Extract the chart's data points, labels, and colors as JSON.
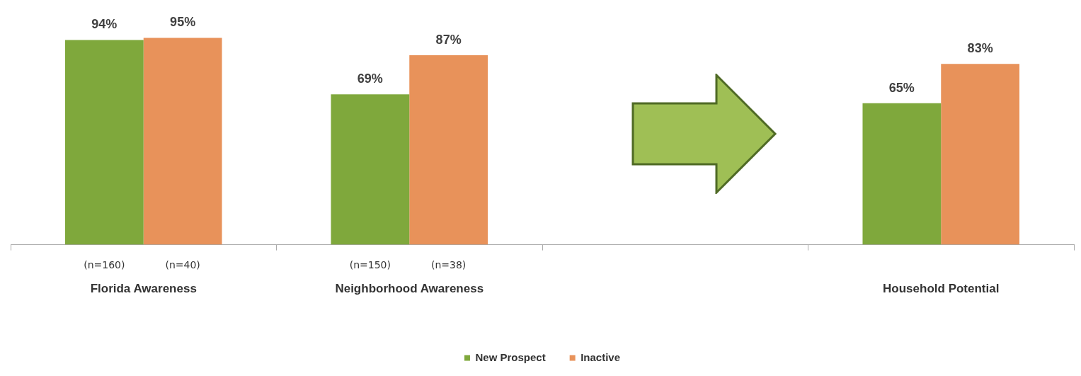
{
  "chart_data": {
    "type": "bar",
    "categories": [
      "Florida Awareness",
      "Neighborhood Awareness",
      null,
      "Household Potential"
    ],
    "series": [
      {
        "name": "New Prospect",
        "color": "#7fa83c",
        "values": [
          94,
          69,
          null,
          65
        ],
        "value_labels": [
          "94%",
          "69%",
          null,
          "65%"
        ]
      },
      {
        "name": "Inactive",
        "color": "#e8925a",
        "values": [
          95,
          87,
          null,
          83
        ],
        "value_labels": [
          "95%",
          "87%",
          null,
          "83%"
        ]
      }
    ],
    "annotations": [
      "(n=160)",
      "(n=40)",
      "(n=150)",
      "(n=38)"
    ],
    "legend": "bottom",
    "grid": false
  }
}
